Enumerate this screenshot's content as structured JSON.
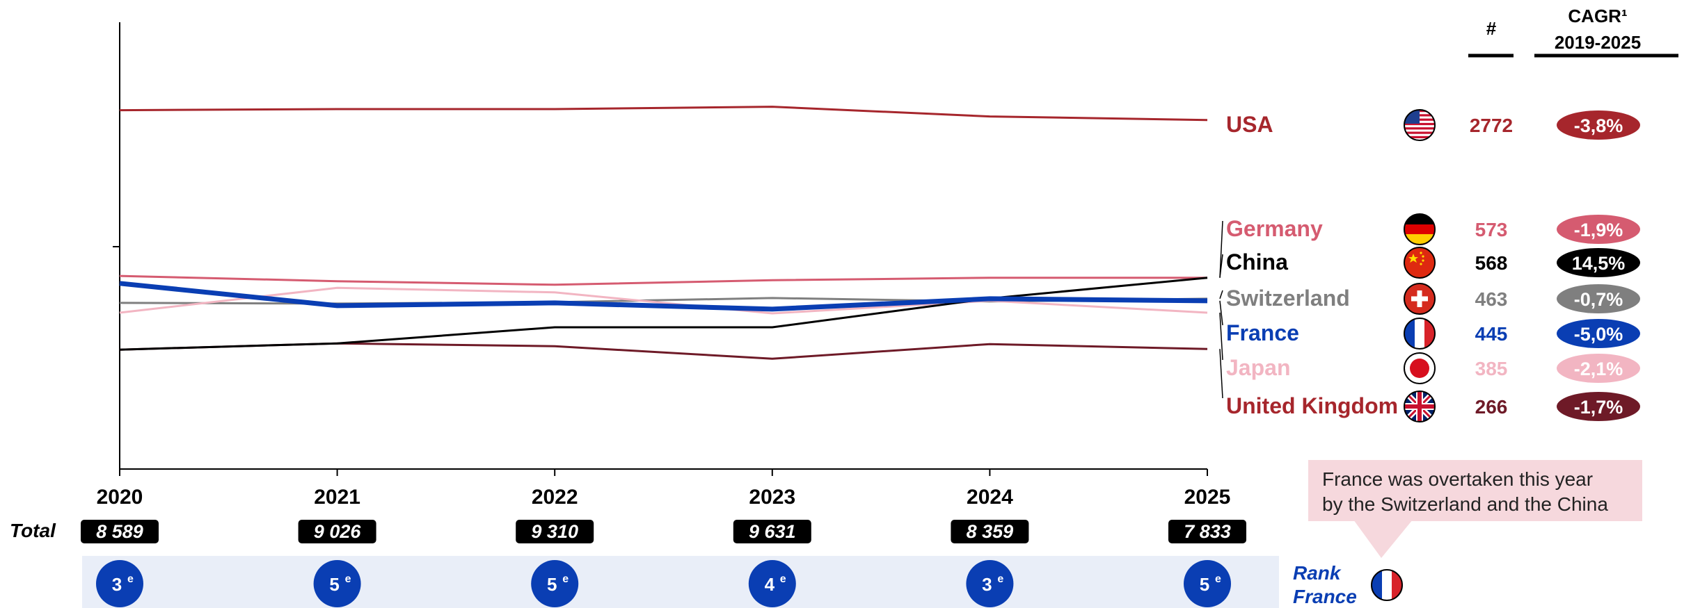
{
  "chart_data": {
    "type": "line",
    "x": [
      "2020",
      "2021",
      "2022",
      "2023",
      "2024",
      "2025"
    ],
    "series": [
      {
        "name": "USA",
        "values": [
          2570,
          2578,
          2578,
          2595,
          2525,
          2500
        ],
        "count": "2772",
        "cagr": "-3,8%",
        "color": "#a6262c",
        "flag": "usa-flag"
      },
      {
        "name": "Germany",
        "values": [
          1383,
          1345,
          1320,
          1352,
          1370,
          1370
        ],
        "count": "573",
        "cagr": "-1,9%",
        "color": "#d55b70",
        "flag": "germany-flag"
      },
      {
        "name": "China",
        "values": [
          855,
          900,
          1015,
          1015,
          1222,
          1370
        ],
        "count": "568",
        "cagr": "14,5%",
        "color": "#000000",
        "flag": "china-flag"
      },
      {
        "name": "Switzerland",
        "values": [
          1190,
          1185,
          1195,
          1225,
          1200,
          1220
        ],
        "count": "463",
        "cagr": "-0,7%",
        "color": "#7f7f7f",
        "flag": "switzerland-flag"
      },
      {
        "name": "France",
        "values": [
          1330,
          1170,
          1190,
          1145,
          1220,
          1205
        ],
        "count": "445",
        "cagr": "-5,0%",
        "color": "#0a3eb3",
        "flag": "france-flag"
      },
      {
        "name": "Japan",
        "values": [
          1120,
          1298,
          1265,
          1115,
          1205,
          1120
        ],
        "count": "385",
        "cagr": "-2,1%",
        "color": "#f2b5c2",
        "flag": "japan-flag"
      },
      {
        "name": "United Kingdom",
        "values": [
          855,
          900,
          880,
          790,
          895,
          860
        ],
        "count": "266",
        "cagr": "-1,7%",
        "color": "#6e1a27",
        "flag": "uk-flag"
      }
    ],
    "ylim": [
      0,
      3200
    ],
    "xlabel": "",
    "ylabel": "",
    "legend": "right"
  },
  "header": {
    "count_col": "#",
    "cagr_line1": "CAGR¹",
    "cagr_line2": "2019-2025"
  },
  "label_colors": {
    "USA": "#a6262c",
    "Germany": "#d55b70",
    "China": "#000000",
    "Switzerland": "#7f7f7f",
    "France": "#0a3eb3",
    "Japan": "#f2b5c2",
    "United Kingdom": "#a6262c"
  },
  "totals": {
    "label": "Total",
    "values": [
      "8 589",
      "9 026",
      "9 310",
      "9 631",
      "8 359",
      "7 833"
    ]
  },
  "ranks": {
    "values": [
      "3",
      "5",
      "5",
      "4",
      "3",
      "5"
    ],
    "suffix": "e",
    "label_line1": "Rank",
    "label_line2": "France",
    "band_color": "#e9eef8",
    "circle_color": "#0a3eb3"
  },
  "callout": {
    "line1": "France was overtaken this year",
    "line2": "by the Switzerland and the China"
  }
}
